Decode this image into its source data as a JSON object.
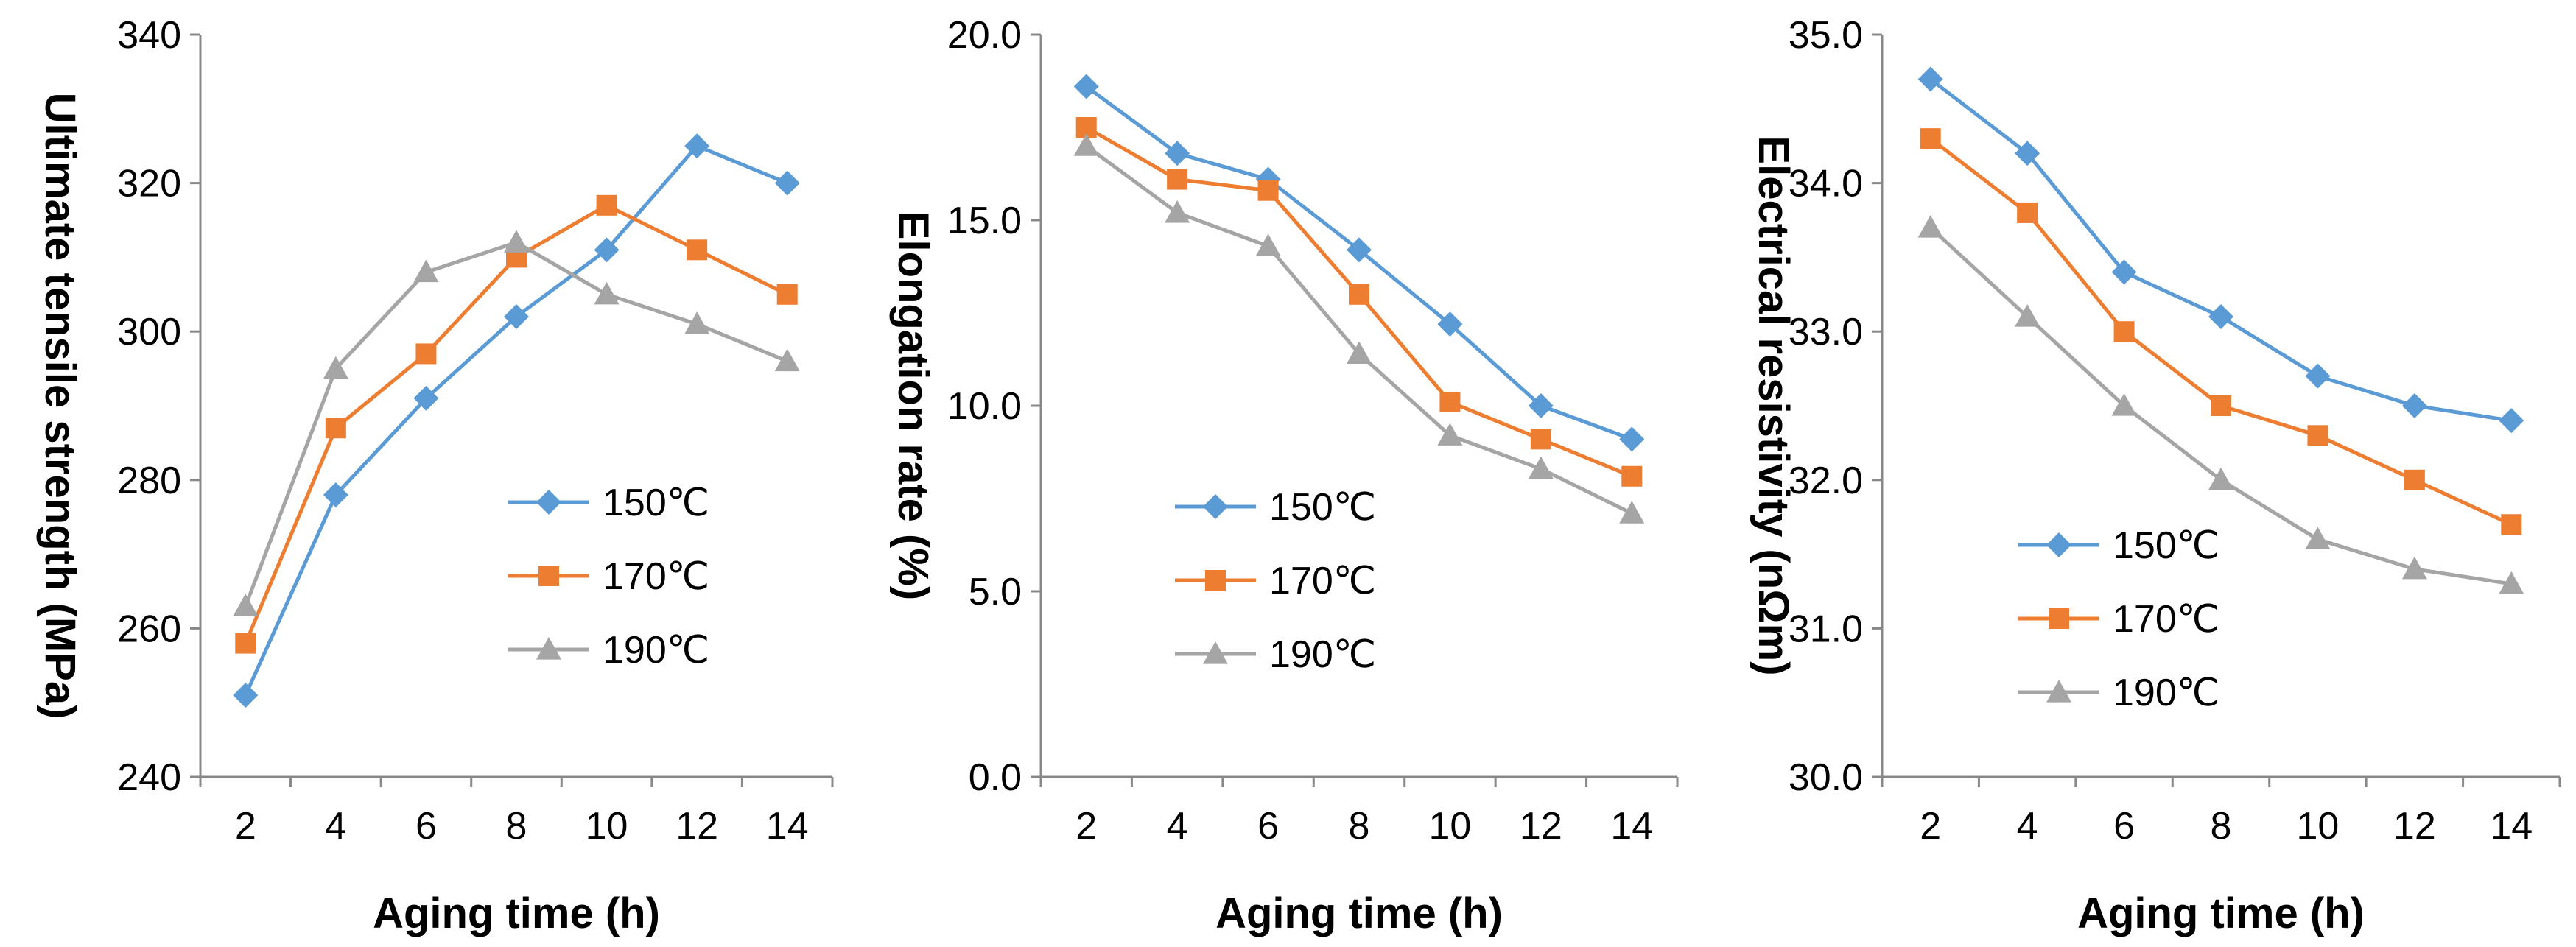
{
  "chart_data": [
    {
      "type": "line",
      "title": "",
      "xlabel": "Aging time (h)",
      "ylabel": "Ultimate tensile strength (MPa)",
      "categories": [
        "2",
        "4",
        "6",
        "8",
        "10",
        "12",
        "14"
      ],
      "ylim": [
        240,
        340
      ],
      "yticks": [
        "240",
        "260",
        "280",
        "300",
        "320",
        "340"
      ],
      "grid": false,
      "legend_position": "center-right",
      "series": [
        {
          "name": "150℃",
          "color": "#5B9BD5",
          "marker": "diamond",
          "values": [
            251,
            278,
            291,
            302,
            311,
            325,
            320
          ]
        },
        {
          "name": "170℃",
          "color": "#ED7D31",
          "marker": "square",
          "values": [
            258,
            287,
            297,
            310,
            317,
            311,
            305
          ]
        },
        {
          "name": "190℃",
          "color": "#A5A5A5",
          "marker": "triangle",
          "values": [
            263,
            295,
            308,
            312,
            305,
            301,
            296
          ]
        }
      ]
    },
    {
      "type": "line",
      "title": "",
      "xlabel": "Aging time (h)",
      "ylabel": "Elongation rate (%)",
      "categories": [
        "2",
        "4",
        "6",
        "8",
        "10",
        "12",
        "14"
      ],
      "ylim": [
        0,
        20
      ],
      "yticks": [
        "0.0",
        "5.0",
        "10.0",
        "15.0",
        "20.0"
      ],
      "grid": false,
      "legend_position": "lower-left",
      "series": [
        {
          "name": "150℃",
          "color": "#5B9BD5",
          "marker": "diamond",
          "values": [
            18.6,
            16.8,
            16.1,
            14.2,
            12.2,
            10.0,
            9.1
          ]
        },
        {
          "name": "170℃",
          "color": "#ED7D31",
          "marker": "square",
          "values": [
            17.5,
            16.1,
            15.8,
            13.0,
            10.1,
            9.1,
            8.1
          ]
        },
        {
          "name": "190℃",
          "color": "#A5A5A5",
          "marker": "triangle",
          "values": [
            17.0,
            15.2,
            14.3,
            11.4,
            9.2,
            8.3,
            7.1
          ]
        }
      ]
    },
    {
      "type": "line",
      "title": "",
      "xlabel": "Aging time (h)",
      "ylabel": "Electrical resistivity (nΩm)",
      "categories": [
        "2",
        "4",
        "6",
        "8",
        "10",
        "12",
        "14"
      ],
      "ylim": [
        30,
        35
      ],
      "yticks": [
        "30.0",
        "31.0",
        "32.0",
        "33.0",
        "34.0",
        "35.0"
      ],
      "grid": false,
      "legend_position": "lower-left",
      "series": [
        {
          "name": "150℃",
          "color": "#5B9BD5",
          "marker": "diamond",
          "values": [
            34.7,
            34.2,
            33.4,
            33.1,
            32.7,
            32.5,
            32.4
          ]
        },
        {
          "name": "170℃",
          "color": "#ED7D31",
          "marker": "square",
          "values": [
            34.3,
            33.8,
            33.0,
            32.5,
            32.3,
            32.0,
            31.7
          ]
        },
        {
          "name": "190℃",
          "color": "#A5A5A5",
          "marker": "triangle",
          "values": [
            33.7,
            33.1,
            32.5,
            32.0,
            31.6,
            31.4,
            31.3
          ]
        }
      ]
    }
  ]
}
